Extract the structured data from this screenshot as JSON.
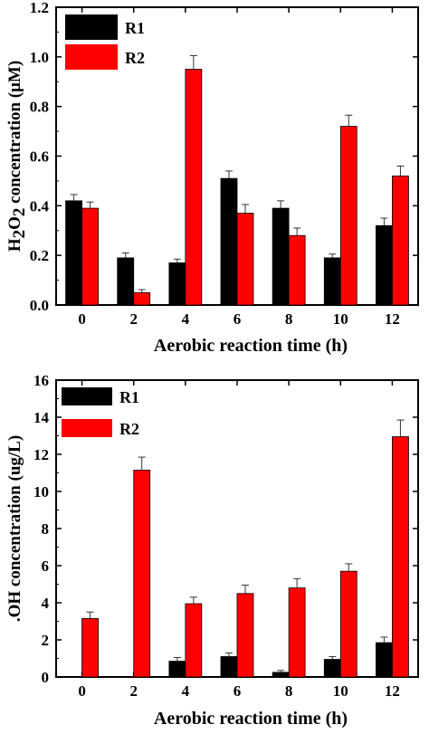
{
  "chart_data": [
    {
      "type": "bar",
      "categories": [
        "0",
        "2",
        "4",
        "6",
        "8",
        "10",
        "12"
      ],
      "xlabel": "Aerobic  reaction time (h)",
      "ylabel": "H2O2 concentration (μM)",
      "ylim": [
        0,
        1.2
      ],
      "yticks": [
        "0.0",
        "0.2",
        "0.4",
        "0.6",
        "0.8",
        "1.0",
        "1.2"
      ],
      "legend_position": "top-left",
      "series": [
        {
          "name": "R1",
          "color": "#000000",
          "values": [
            0.42,
            0.19,
            0.17,
            0.51,
            0.39,
            0.19,
            0.32
          ],
          "errors": [
            0.025,
            0.02,
            0.015,
            0.03,
            0.03,
            0.015,
            0.03
          ]
        },
        {
          "name": "R2",
          "color": "#ff0000",
          "values": [
            0.39,
            0.05,
            0.95,
            0.37,
            0.28,
            0.72,
            0.52
          ],
          "errors": [
            0.025,
            0.012,
            0.055,
            0.035,
            0.03,
            0.045,
            0.04
          ]
        }
      ]
    },
    {
      "type": "bar",
      "categories": [
        "0",
        "2",
        "4",
        "6",
        "8",
        "10",
        "12"
      ],
      "xlabel": "Aerobic  reaction time (h)",
      "ylabel": ".OH concentration (ug/L)",
      "ylim": [
        0,
        16
      ],
      "yticks": [
        "0",
        "2",
        "4",
        "6",
        "8",
        "10",
        "12",
        "14",
        "16"
      ],
      "legend_position": "top-left",
      "series": [
        {
          "name": "R1",
          "color": "#000000",
          "values": [
            0,
            0,
            0.85,
            1.1,
            0.25,
            0.95,
            1.85
          ],
          "errors": [
            0,
            0,
            0.2,
            0.2,
            0.1,
            0.15,
            0.3
          ]
        },
        {
          "name": "R2",
          "color": "#ff0000",
          "values": [
            3.15,
            11.15,
            3.95,
            4.5,
            4.8,
            5.7,
            12.95
          ],
          "errors": [
            0.35,
            0.7,
            0.35,
            0.45,
            0.5,
            0.4,
            0.9
          ]
        }
      ]
    }
  ]
}
